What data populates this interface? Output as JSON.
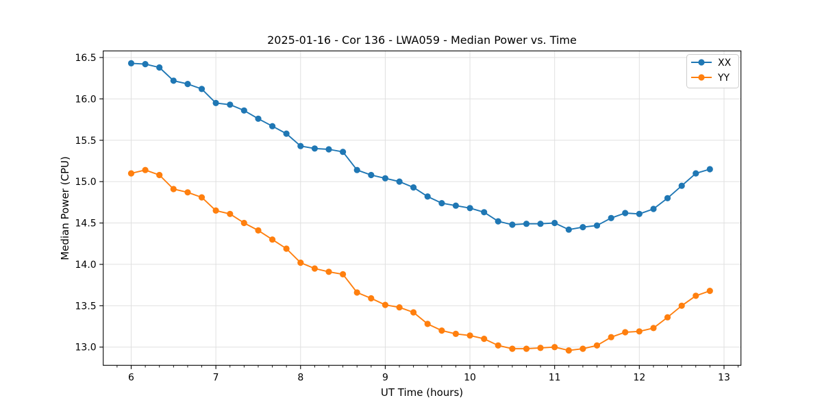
{
  "window": {
    "kind": "static-plot-screenshot"
  },
  "chart_data": {
    "type": "line",
    "title": "2025-01-16 - Cor 136 - LWA059 - Median Power vs. Time",
    "xlabel": "UT Time (hours)",
    "ylabel": "Median Power (CPU)",
    "xlim": [
      5.67,
      13.2
    ],
    "ylim": [
      12.78,
      16.58
    ],
    "xtick_values": [
      6,
      7,
      8,
      9,
      10,
      11,
      12,
      13
    ],
    "xtick_labels": [
      "6",
      "7",
      "8",
      "9",
      "10",
      "11",
      "12",
      "13"
    ],
    "ytick_values": [
      13.0,
      13.5,
      14.0,
      14.5,
      15.0,
      15.5,
      16.0,
      16.5
    ],
    "ytick_labels": [
      "13.0",
      "13.5",
      "14.0",
      "14.5",
      "15.0",
      "15.5",
      "16.0",
      "16.5"
    ],
    "x_minor_step_hours": 0.16667,
    "grid": true,
    "legend_position": "upper right",
    "colors": {
      "grid": "#e0e0e0",
      "axes": "#000000",
      "series_xx": "#1f77b4",
      "series_yy": "#ff7f0e"
    },
    "x": [
      6.0,
      6.167,
      6.333,
      6.5,
      6.667,
      6.833,
      7.0,
      7.167,
      7.333,
      7.5,
      7.667,
      7.833,
      8.0,
      8.167,
      8.333,
      8.5,
      8.667,
      8.833,
      9.0,
      9.167,
      9.333,
      9.5,
      9.667,
      9.833,
      10.0,
      10.167,
      10.333,
      10.5,
      10.667,
      10.833,
      11.0,
      11.167,
      11.333,
      11.5,
      11.667,
      11.833,
      12.0,
      12.167,
      12.333,
      12.5,
      12.667,
      12.833
    ],
    "series": [
      {
        "name": "XX",
        "color": "#1f77b4",
        "values": [
          16.43,
          16.42,
          16.38,
          16.22,
          16.18,
          16.12,
          15.95,
          15.93,
          15.86,
          15.76,
          15.67,
          15.58,
          15.43,
          15.4,
          15.39,
          15.36,
          15.14,
          15.08,
          15.04,
          15.0,
          14.93,
          14.82,
          14.74,
          14.71,
          14.68,
          14.63,
          14.52,
          14.48,
          14.49,
          14.49,
          14.5,
          14.42,
          14.45,
          14.47,
          14.56,
          14.62,
          14.61,
          14.67,
          14.8,
          14.95,
          15.1,
          15.15
        ]
      },
      {
        "name": "YY",
        "color": "#ff7f0e",
        "values": [
          15.1,
          15.14,
          15.08,
          14.91,
          14.87,
          14.81,
          14.65,
          14.61,
          14.5,
          14.41,
          14.3,
          14.19,
          14.02,
          13.95,
          13.91,
          13.88,
          13.66,
          13.59,
          13.51,
          13.48,
          13.42,
          13.28,
          13.2,
          13.16,
          13.14,
          13.1,
          13.02,
          12.98,
          12.98,
          12.99,
          13.0,
          12.96,
          12.98,
          13.02,
          13.12,
          13.18,
          13.19,
          13.23,
          13.36,
          13.5,
          13.62,
          13.68
        ]
      }
    ]
  }
}
